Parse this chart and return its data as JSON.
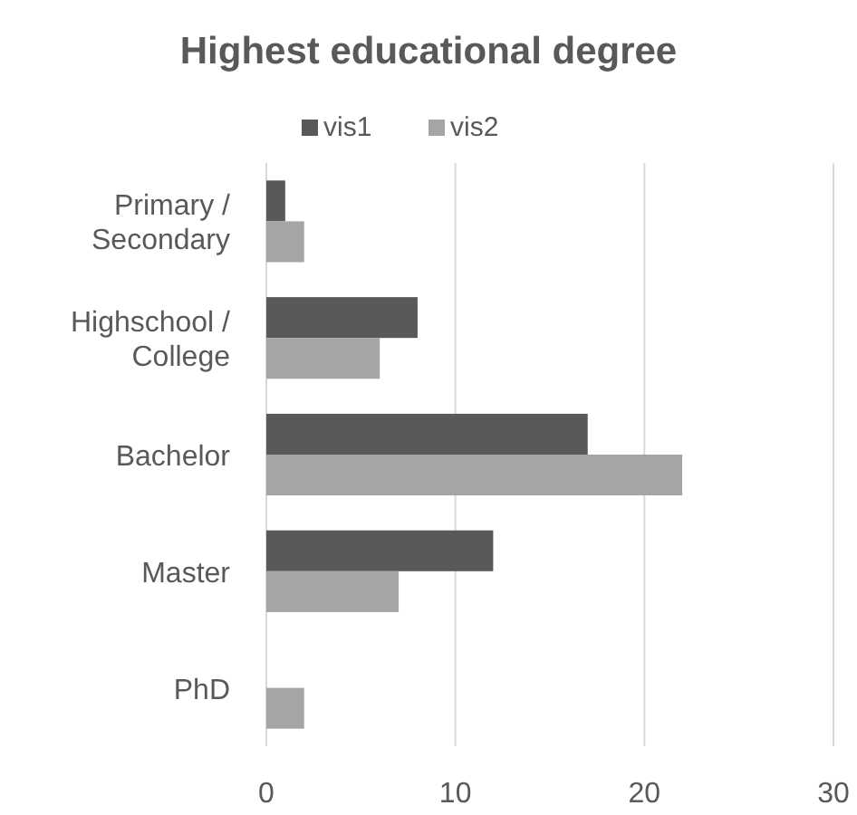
{
  "chart_data": {
    "type": "bar",
    "orientation": "horizontal",
    "title": "Highest educational degree",
    "categories": [
      "Primary / Secondary",
      "Highschool / College",
      "Bachelor",
      "Master",
      "PhD"
    ],
    "series": [
      {
        "name": "vis1",
        "color": "#595959",
        "values": [
          1,
          8,
          17,
          12,
          0
        ]
      },
      {
        "name": "vis2",
        "color": "#a5a5a5",
        "values": [
          2,
          6,
          22,
          7,
          2
        ]
      }
    ],
    "xlim": [
      0,
      30
    ],
    "xticks": [
      0,
      10,
      20,
      30
    ],
    "grid": "x",
    "legend": "top"
  }
}
